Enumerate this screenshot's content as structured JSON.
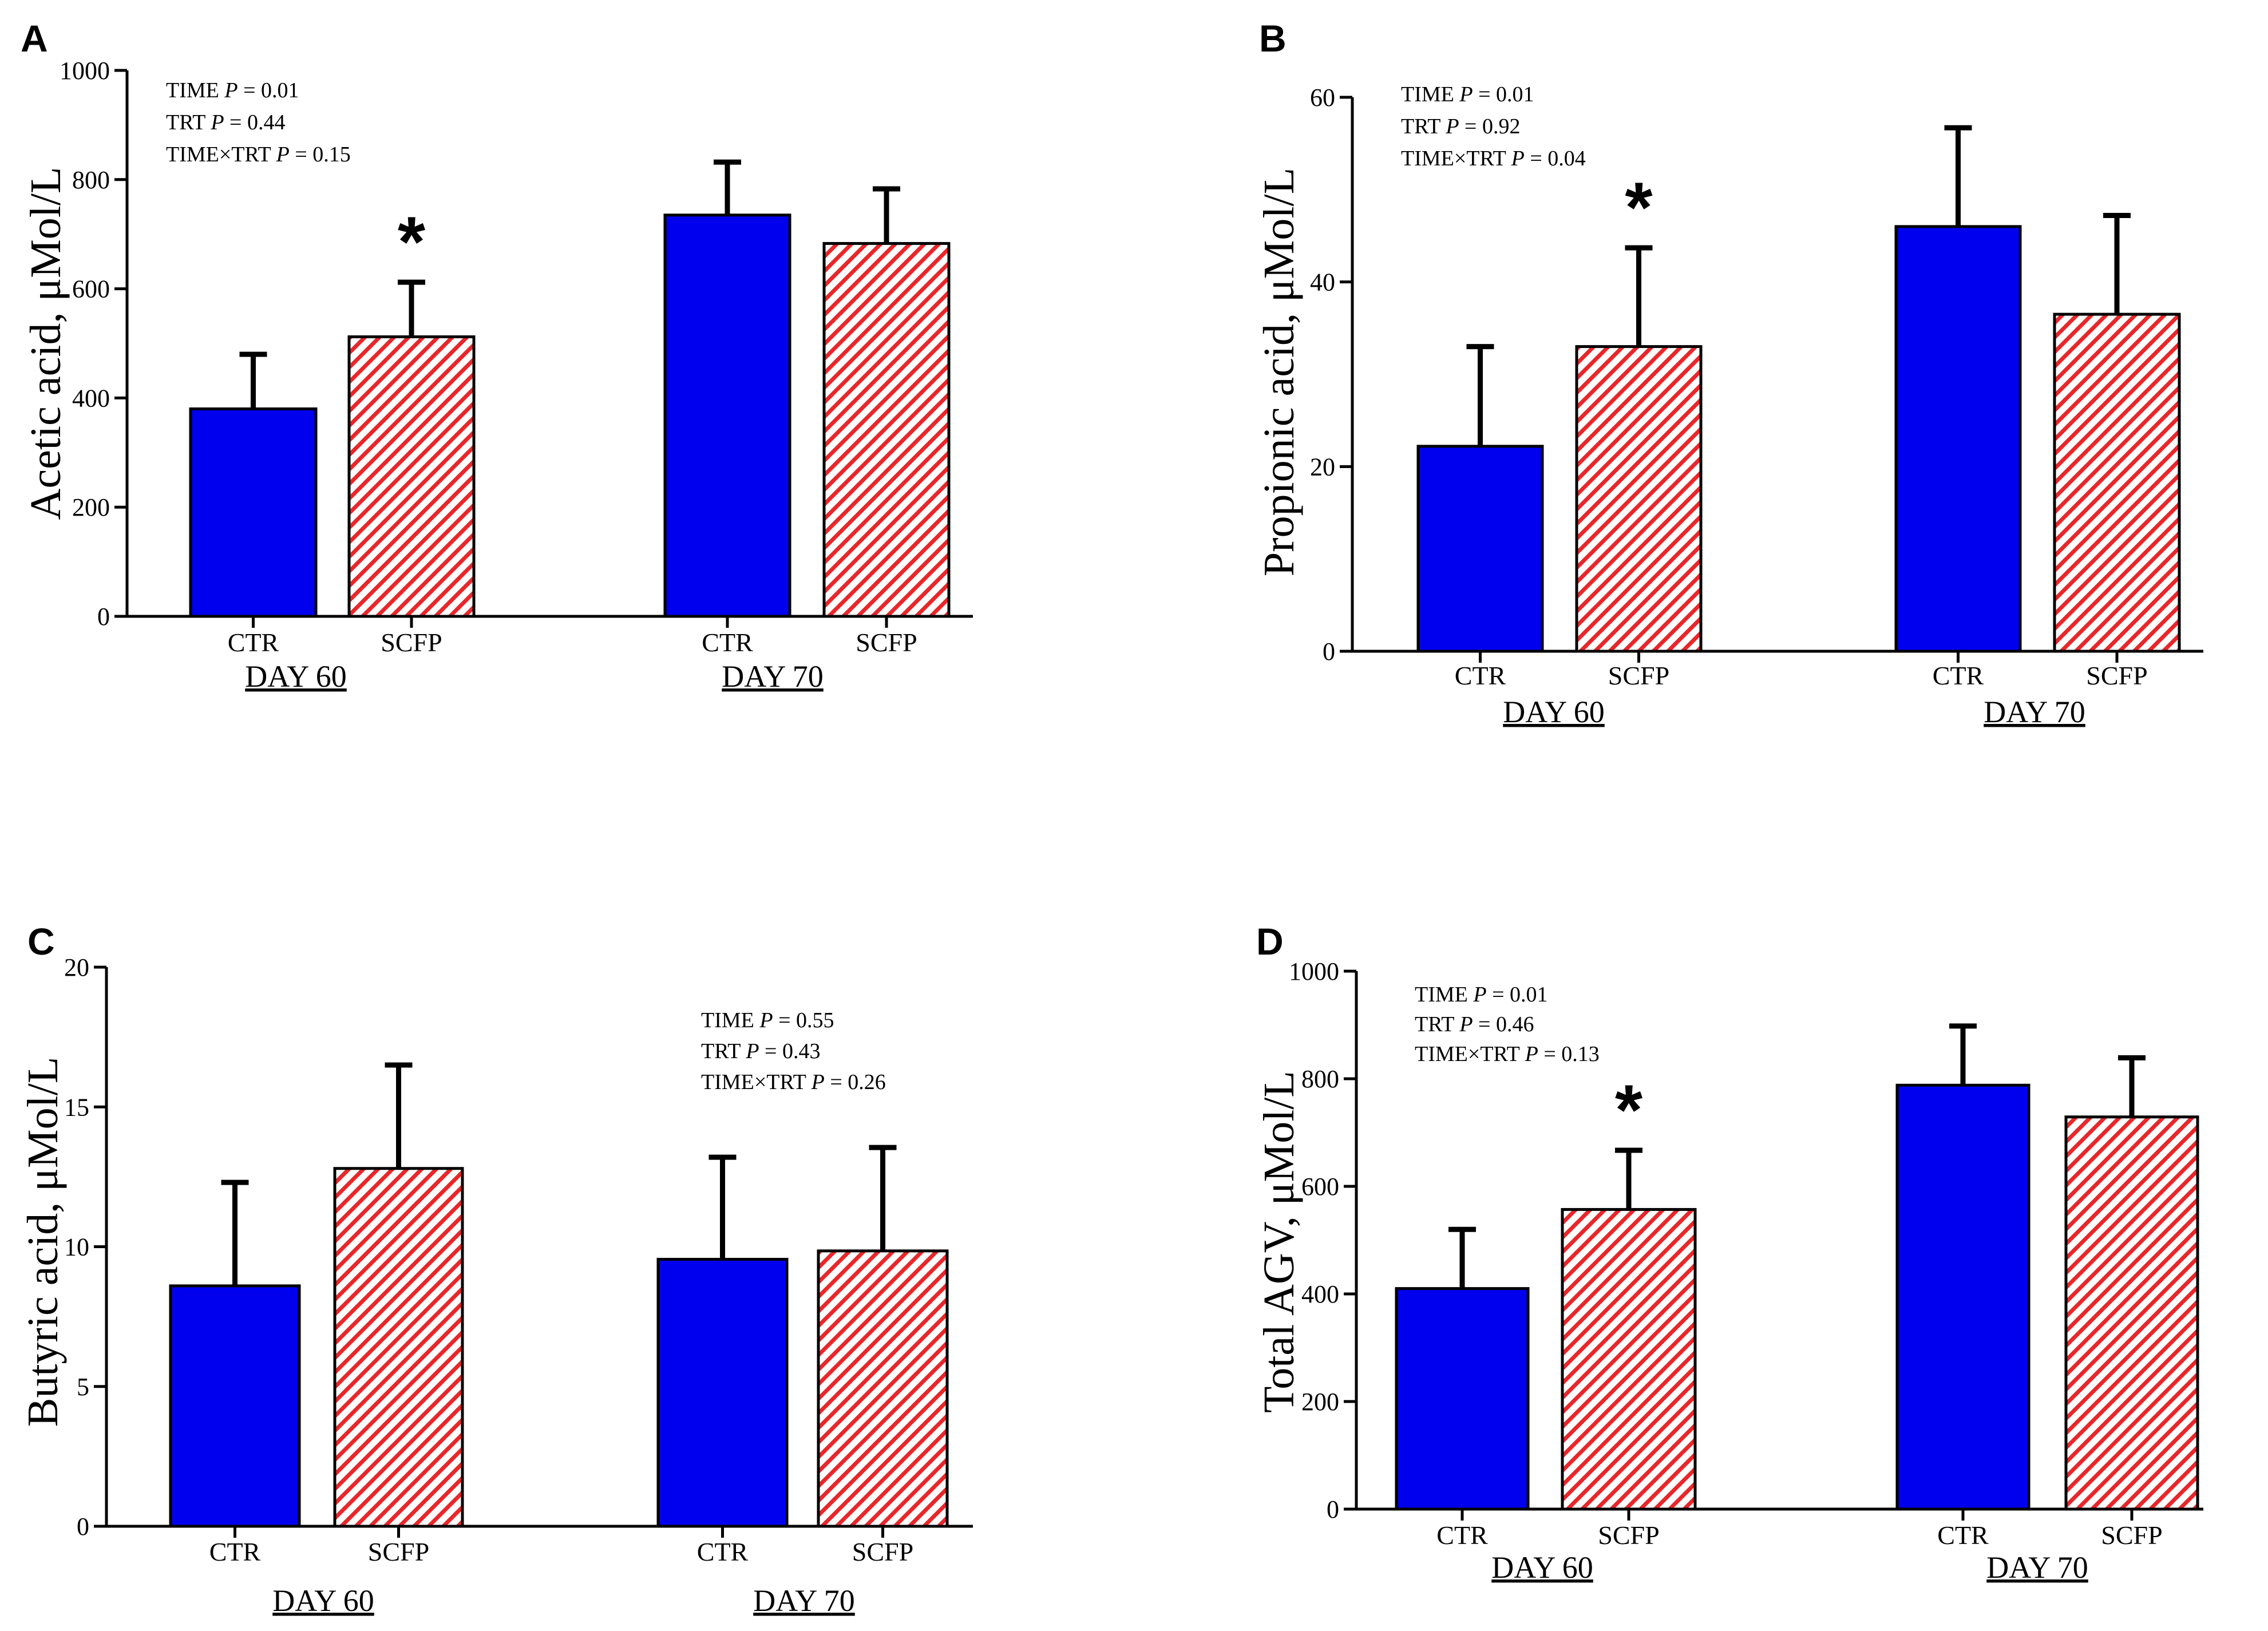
{
  "colors": {
    "ctr": "#0000ee",
    "scfp_bg": "#ffffff",
    "scfp_hatch": "#e8272b",
    "ink": "#000000"
  },
  "chart_data": [
    {
      "panel": "A",
      "type": "bar",
      "ylabel": "Acetic acid, μMol/L",
      "ylim": [
        0,
        1000
      ],
      "yticks": [
        "0",
        "200",
        "400",
        "600",
        "800",
        "1000"
      ],
      "groups": [
        {
          "label": "DAY 60",
          "bars": [
            {
              "category": "CTR",
              "value": 380,
              "error": 100,
              "star": false
            },
            {
              "category": "SCFP",
              "value": 512,
              "error": 100,
              "star": true
            }
          ]
        },
        {
          "label": "DAY 70",
          "bars": [
            {
              "category": "CTR",
              "value": 735,
              "error": 97,
              "star": false
            },
            {
              "category": "SCFP",
              "value": 683,
              "error": 100,
              "star": false
            }
          ]
        }
      ],
      "stats": [
        {
          "prefix": "TIME ",
          "p": "P",
          "suffix": " = 0.01"
        },
        {
          "prefix": "TRT ",
          "p": "P",
          "suffix": " = 0.44"
        },
        {
          "prefix": "TIME×TRT ",
          "p": "P",
          "suffix": " = 0.15"
        }
      ],
      "star_symbol": "*"
    },
    {
      "panel": "B",
      "type": "bar",
      "ylabel": "Propionic acid, μMol/L",
      "ylim": [
        0,
        60
      ],
      "yticks": [
        "0",
        "20",
        "40",
        "60"
      ],
      "groups": [
        {
          "label": "DAY 60",
          "bars": [
            {
              "category": "CTR",
              "value": 22.2,
              "error": 10.8,
              "star": false
            },
            {
              "category": "SCFP",
              "value": 33.0,
              "error": 10.7,
              "star": true
            }
          ]
        },
        {
          "label": "DAY 70",
          "bars": [
            {
              "category": "CTR",
              "value": 46.0,
              "error": 10.7,
              "star": false
            },
            {
              "category": "SCFP",
              "value": 36.5,
              "error": 10.7,
              "star": false
            }
          ]
        }
      ],
      "stats": [
        {
          "prefix": "TIME ",
          "p": "P",
          "suffix": " = 0.01"
        },
        {
          "prefix": "TRT ",
          "p": "P",
          "suffix": " = 0.92"
        },
        {
          "prefix": "TIME×TRT ",
          "p": "P",
          "suffix": " = 0.04"
        }
      ],
      "star_symbol": "*"
    },
    {
      "panel": "C",
      "type": "bar",
      "ylabel": "Butyric acid, μMol/L",
      "ylim": [
        0,
        20
      ],
      "yticks": [
        "0",
        "5",
        "10",
        "15",
        "20"
      ],
      "groups": [
        {
          "label": "DAY 60",
          "bars": [
            {
              "category": "CTR",
              "value": 8.6,
              "error": 3.7,
              "star": false
            },
            {
              "category": "SCFP",
              "value": 12.8,
              "error": 3.7,
              "star": false
            }
          ]
        },
        {
          "label": "DAY 70",
          "bars": [
            {
              "category": "CTR",
              "value": 9.55,
              "error": 3.65,
              "star": false
            },
            {
              "category": "SCFP",
              "value": 9.85,
              "error": 3.7,
              "star": false
            }
          ]
        }
      ],
      "stats": [
        {
          "prefix": "TIME ",
          "p": "P",
          "suffix": " = 0.55"
        },
        {
          "prefix": "TRT ",
          "p": "P",
          "suffix": " = 0.43"
        },
        {
          "prefix": "TIME×TRT ",
          "p": "P",
          "suffix": " = 0.26"
        }
      ],
      "star_symbol": "*"
    },
    {
      "panel": "D",
      "type": "bar",
      "ylabel": "Total AGV, μMol/L",
      "ylim": [
        0,
        1000
      ],
      "yticks": [
        "0",
        "200",
        "400",
        "600",
        "800",
        "1000"
      ],
      "groups": [
        {
          "label": "DAY 60",
          "bars": [
            {
              "category": "CTR",
              "value": 410,
              "error": 110,
              "star": false
            },
            {
              "category": "SCFP",
              "value": 557,
              "error": 110,
              "star": true
            }
          ]
        },
        {
          "label": "DAY 70",
          "bars": [
            {
              "category": "CTR",
              "value": 788,
              "error": 110,
              "star": false
            },
            {
              "category": "SCFP",
              "value": 729,
              "error": 110,
              "star": false
            }
          ]
        }
      ],
      "stats": [
        {
          "prefix": "TIME ",
          "p": "P",
          "suffix": " = 0.01"
        },
        {
          "prefix": "TRT ",
          "p": "P",
          "suffix": " = 0.46"
        },
        {
          "prefix": "TIME×TRT ",
          "p": "P",
          "suffix": " = 0.13"
        }
      ],
      "star_symbol": "*"
    }
  ]
}
